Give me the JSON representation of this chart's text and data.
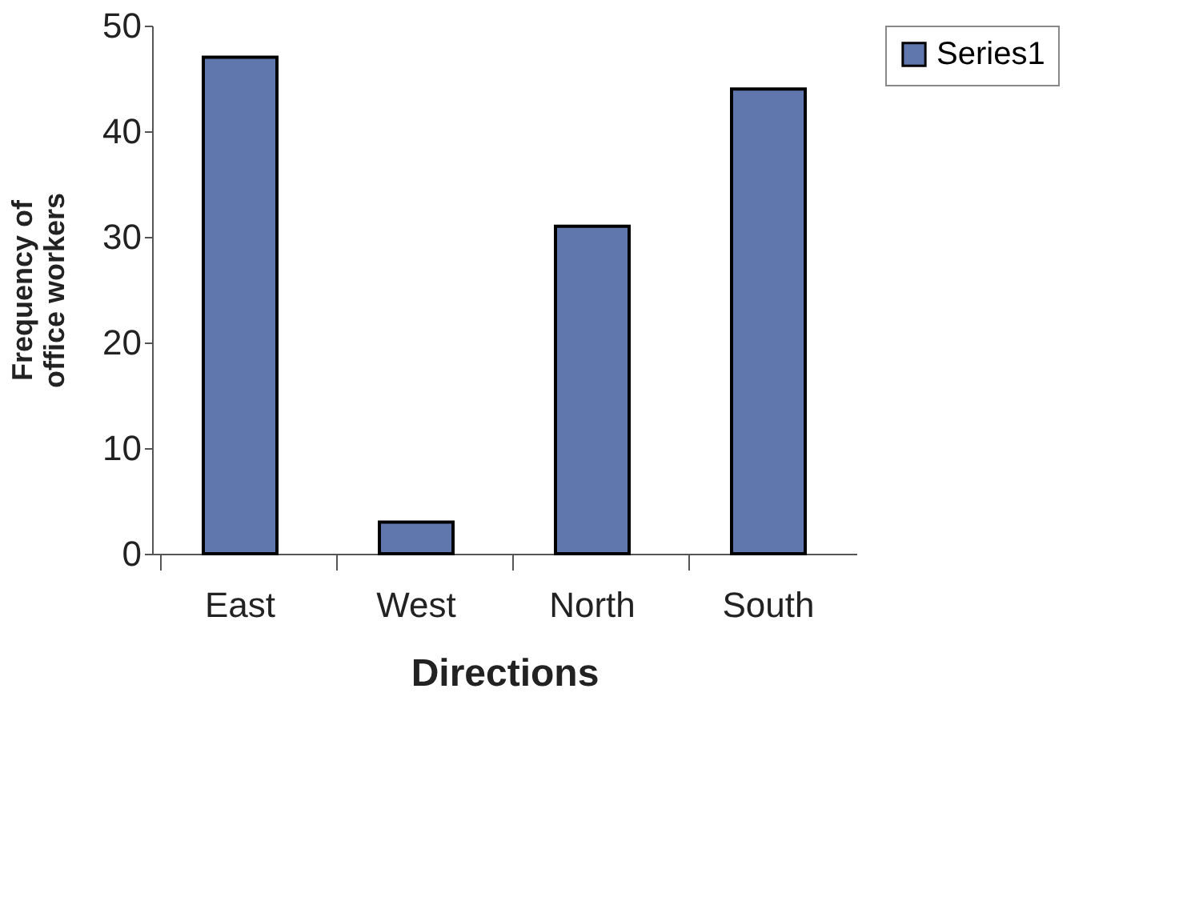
{
  "chart_data": {
    "type": "bar",
    "xlabel": "Directions",
    "ylabel": "Frequency of office workers",
    "categories": [
      "East",
      "West",
      "North",
      "South"
    ],
    "series": [
      {
        "name": "Series1",
        "color": "#5f77ac",
        "values": [
          47,
          3,
          31,
          44
        ]
      }
    ],
    "ylim": [
      0,
      50
    ],
    "yticks": [
      0,
      10,
      20,
      30,
      40,
      50
    ],
    "grid": false,
    "legend": "right"
  }
}
